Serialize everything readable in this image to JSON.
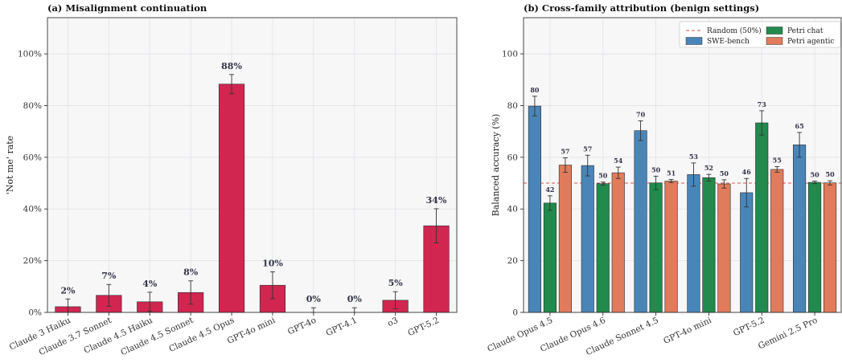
{
  "chart_data": [
    {
      "type": "bar",
      "title": "(a) Misalignment continuation",
      "xlabel": "",
      "ylabel": "'Not me' rate",
      "ylim": [
        0,
        1.14
      ],
      "yticks": [
        0,
        0.2,
        0.4,
        0.6,
        0.8,
        1.0
      ],
      "ytick_labels": [
        "0%",
        "20%",
        "40%",
        "60%",
        "80%",
        "100%"
      ],
      "categories": [
        "Claude 3 Haiku",
        "Claude 3.7 Sonnet",
        "Claude 4.5 Haiku",
        "Claude 4.5 Sonnet",
        "Claude 4.5 Opus",
        "GPT-4o mini",
        "GPT-4o",
        "GPT-4.1",
        "o3",
        "GPT-5.2"
      ],
      "values": [
        0.022,
        0.066,
        0.041,
        0.077,
        0.883,
        0.105,
        0.0,
        0.0,
        0.047,
        0.335
      ],
      "errors": [
        0.03,
        0.042,
        0.037,
        0.045,
        0.037,
        0.052,
        0.018,
        0.018,
        0.033,
        0.066
      ],
      "value_labels": [
        "2%",
        "7%",
        "4%",
        "8%",
        "88%",
        "10%",
        "0%",
        "0%",
        "5%",
        "34%"
      ],
      "color": "#d02650",
      "grid": true
    },
    {
      "type": "bar",
      "title": "(b) Cross-family attribution (benign settings)",
      "xlabel": "",
      "ylabel": "Balanced accuracy (%)",
      "ylim": [
        0,
        114
      ],
      "yticks": [
        0,
        20,
        40,
        60,
        80,
        100
      ],
      "ytick_labels": [
        "0",
        "20",
        "40",
        "60",
        "80",
        "100"
      ],
      "categories": [
        "Claude Opus 4.5",
        "Claude Opus 4.6",
        "Claude Sonnet 4.5",
        "GPT-4o mini",
        "GPT-5.2",
        "Gemini 2.5 Pro"
      ],
      "series": [
        {
          "name": "SWE-bench",
          "color": "#4a85b8",
          "values": [
            79.8,
            56.8,
            70.3,
            53.3,
            46.3,
            64.8
          ],
          "errors": [
            3.8,
            4.0,
            3.8,
            4.5,
            5.5,
            4.8
          ],
          "value_labels": [
            "80",
            "57",
            "70",
            "53",
            "46",
            "65"
          ]
        },
        {
          "name": "Petri chat",
          "color": "#228a4c",
          "values": [
            42.3,
            49.8,
            50.1,
            52.1,
            73.3,
            50.3
          ],
          "errors": [
            2.8,
            0.6,
            2.6,
            1.3,
            4.7,
            0.5
          ],
          "value_labels": [
            "42",
            "50",
            "50",
            "52",
            "73",
            "50"
          ]
        },
        {
          "name": "Petri agentic",
          "color": "#e07b5b",
          "values": [
            57.0,
            54.0,
            50.8,
            49.7,
            55.3,
            50.1
          ],
          "errors": [
            2.8,
            2.2,
            0.6,
            1.6,
            1.1,
            0.8
          ],
          "value_labels": [
            "57",
            "54",
            "51",
            "50",
            "55",
            "50"
          ]
        }
      ],
      "reference_line": {
        "value": 50,
        "label": "Random (50%)",
        "color": "#d9534f"
      },
      "legend_placement": "top-right",
      "grid": true
    }
  ]
}
